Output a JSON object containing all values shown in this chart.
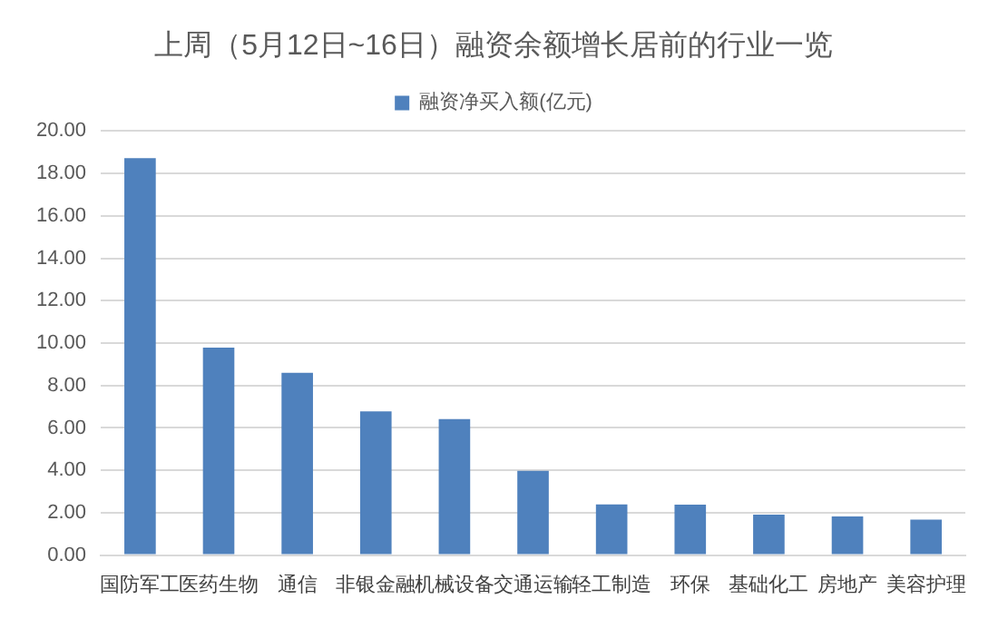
{
  "chart_data": {
    "type": "bar",
    "title": "上周（5月12日~16日）融资余额增长居前的行业一览",
    "categories": [
      "国防军工",
      "医药生物",
      "通信",
      "非银金融",
      "机械设备",
      "交通运输",
      "轻工制造",
      "环保",
      "基础化工",
      "房地产",
      "美容护理"
    ],
    "series": [
      {
        "name": "融资净买入额(亿元)",
        "color": "#4f81bd",
        "values": [
          18.72,
          9.79,
          8.6,
          6.78,
          6.42,
          3.97,
          2.39,
          2.38,
          1.91,
          1.82,
          1.67
        ]
      }
    ],
    "ylim": [
      0,
      20
    ],
    "yticks": [
      {
        "value": 0,
        "label": "0.00"
      },
      {
        "value": 2,
        "label": "2.00"
      },
      {
        "value": 4,
        "label": "4.00"
      },
      {
        "value": 6,
        "label": "6.00"
      },
      {
        "value": 8,
        "label": "8.00"
      },
      {
        "value": 10,
        "label": "10.00"
      },
      {
        "value": 12,
        "label": "12.00"
      },
      {
        "value": 14,
        "label": "14.00"
      },
      {
        "value": 16,
        "label": "16.00"
      },
      {
        "value": 18,
        "label": "18.00"
      },
      {
        "value": 20,
        "label": "20.00"
      }
    ],
    "grid": "y",
    "legend": "top"
  }
}
